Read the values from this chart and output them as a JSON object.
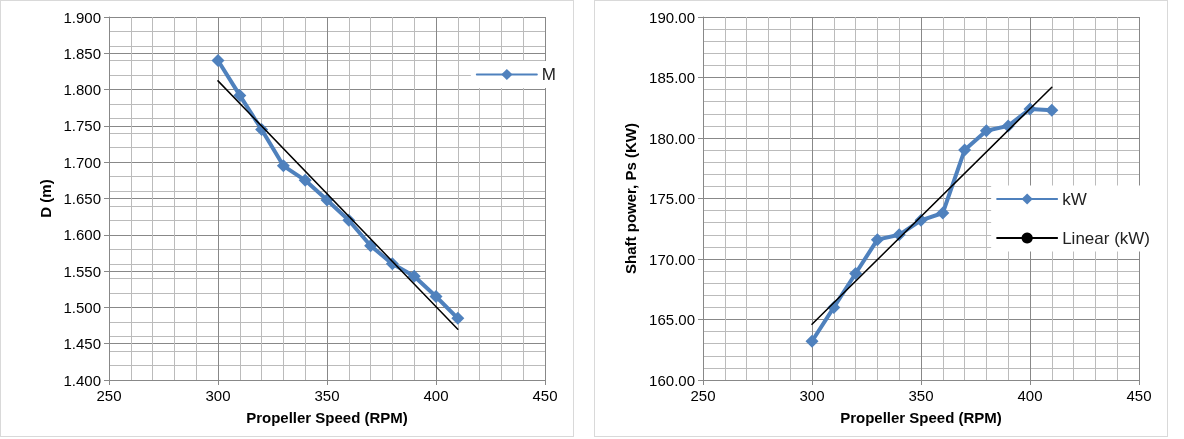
{
  "chart_data": [
    {
      "type": "line",
      "xlabel": "Propeller Speed (RPM)",
      "ylabel": "D (m)",
      "xlim": [
        250,
        450
      ],
      "xticks": [
        250,
        300,
        350,
        400,
        450
      ],
      "ylim": [
        1.4,
        1.9
      ],
      "yticks": [
        {
          "value": 1.4,
          "label": "1.400"
        },
        {
          "value": 1.45,
          "label": "1.450"
        },
        {
          "value": 1.5,
          "label": "1.500"
        },
        {
          "value": 1.55,
          "label": "1.550"
        },
        {
          "value": 1.6,
          "label": "1.600"
        },
        {
          "value": 1.65,
          "label": "1.650"
        },
        {
          "value": 1.7,
          "label": "1.700"
        },
        {
          "value": 1.75,
          "label": "1.750"
        },
        {
          "value": 1.8,
          "label": "1.800"
        },
        {
          "value": 1.85,
          "label": "1.850"
        },
        {
          "value": 1.9,
          "label": "1.900"
        }
      ],
      "grid": true,
      "legend": "top right",
      "marker": "diamond",
      "line_style": "solid",
      "series": [
        {
          "name": "M",
          "color": "#4f81bd",
          "x": [
            300,
            310,
            320,
            330,
            340,
            350,
            360,
            370,
            380,
            390,
            400,
            410
          ],
          "values": [
            1.84,
            1.792,
            1.745,
            1.695,
            1.675,
            1.648,
            1.62,
            1.585,
            1.56,
            1.543,
            1.515,
            1.485
          ]
        },
        {
          "type": "line",
          "color": "#000000",
          "marker": "none",
          "x": [
            300,
            410
          ],
          "values": [
            1.812,
            1.47
          ]
        }
      ]
    },
    {
      "type": "line",
      "xlabel": "Propeller Speed (RPM)",
      "ylabel": "Shaft power, Ps (KW)",
      "xlim": [
        250,
        450
      ],
      "xticks": [
        250,
        300,
        350,
        400,
        450
      ],
      "ylim": [
        160,
        190
      ],
      "yticks": [
        {
          "value": 160,
          "label": "160.00"
        },
        {
          "value": 165,
          "label": "165.00"
        },
        {
          "value": 170,
          "label": "170.00"
        },
        {
          "value": 175,
          "label": "175.00"
        },
        {
          "value": 180,
          "label": "180.00"
        },
        {
          "value": 185,
          "label": "185.00"
        },
        {
          "value": 190,
          "label": "190.00"
        }
      ],
      "grid": true,
      "legend": "right",
      "marker": "diamond",
      "line_style": "solid",
      "series": [
        {
          "name": "kW",
          "color": "#4f81bd",
          "x": [
            300,
            310,
            320,
            330,
            340,
            350,
            360,
            370,
            380,
            390,
            400,
            410
          ],
          "values": [
            163.2,
            166.0,
            168.8,
            171.6,
            172.0,
            173.2,
            173.8,
            179.0,
            180.6,
            181.0,
            182.4,
            182.3
          ]
        },
        {
          "name": "Linear (kW)",
          "type": "line",
          "color": "#000000",
          "marker": "none",
          "x": [
            300,
            410
          ],
          "values": [
            164.6,
            184.2
          ]
        }
      ]
    }
  ]
}
